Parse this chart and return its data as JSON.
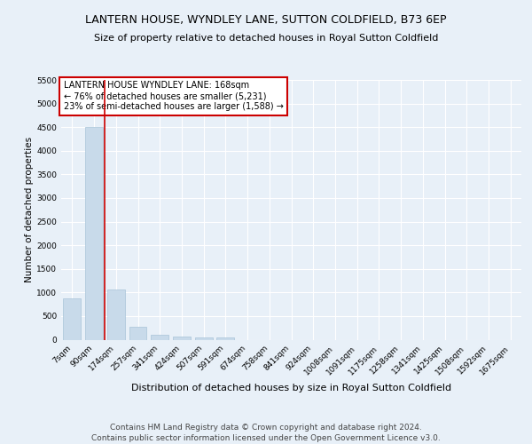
{
  "title1": "LANTERN HOUSE, WYNDLEY LANE, SUTTON COLDFIELD, B73 6EP",
  "title2": "Size of property relative to detached houses in Royal Sutton Coldfield",
  "xlabel": "Distribution of detached houses by size in Royal Sutton Coldfield",
  "ylabel": "Number of detached properties",
  "categories": [
    "7sqm",
    "90sqm",
    "174sqm",
    "257sqm",
    "341sqm",
    "424sqm",
    "507sqm",
    "591sqm",
    "674sqm",
    "758sqm",
    "841sqm",
    "924sqm",
    "1008sqm",
    "1091sqm",
    "1175sqm",
    "1258sqm",
    "1341sqm",
    "1425sqm",
    "1508sqm",
    "1592sqm",
    "1675sqm"
  ],
  "values": [
    870,
    4500,
    1060,
    280,
    95,
    65,
    50,
    40,
    0,
    0,
    0,
    0,
    0,
    0,
    0,
    0,
    0,
    0,
    0,
    0,
    0
  ],
  "bar_color": "#c8daea",
  "bar_edge_color": "#a8c4d8",
  "property_line_x": 1.5,
  "property_line_color": "#cc0000",
  "ylim": [
    0,
    5500
  ],
  "yticks": [
    0,
    500,
    1000,
    1500,
    2000,
    2500,
    3000,
    3500,
    4000,
    4500,
    5000,
    5500
  ],
  "annotation_box_text": "LANTERN HOUSE WYNDLEY LANE: 168sqm\n← 76% of detached houses are smaller (5,231)\n23% of semi-detached houses are larger (1,588) →",
  "annotation_box_color": "#cc0000",
  "annotation_box_fill": "#ffffff",
  "footer": "Contains HM Land Registry data © Crown copyright and database right 2024.\nContains public sector information licensed under the Open Government Licence v3.0.",
  "bg_color": "#e8f0f8",
  "plot_bg_color": "#e8f0f8",
  "title1_fontsize": 9,
  "title2_fontsize": 8,
  "xlabel_fontsize": 8,
  "ylabel_fontsize": 7.5,
  "annotation_fontsize": 7,
  "footer_fontsize": 6.5,
  "tick_fontsize": 6.5
}
